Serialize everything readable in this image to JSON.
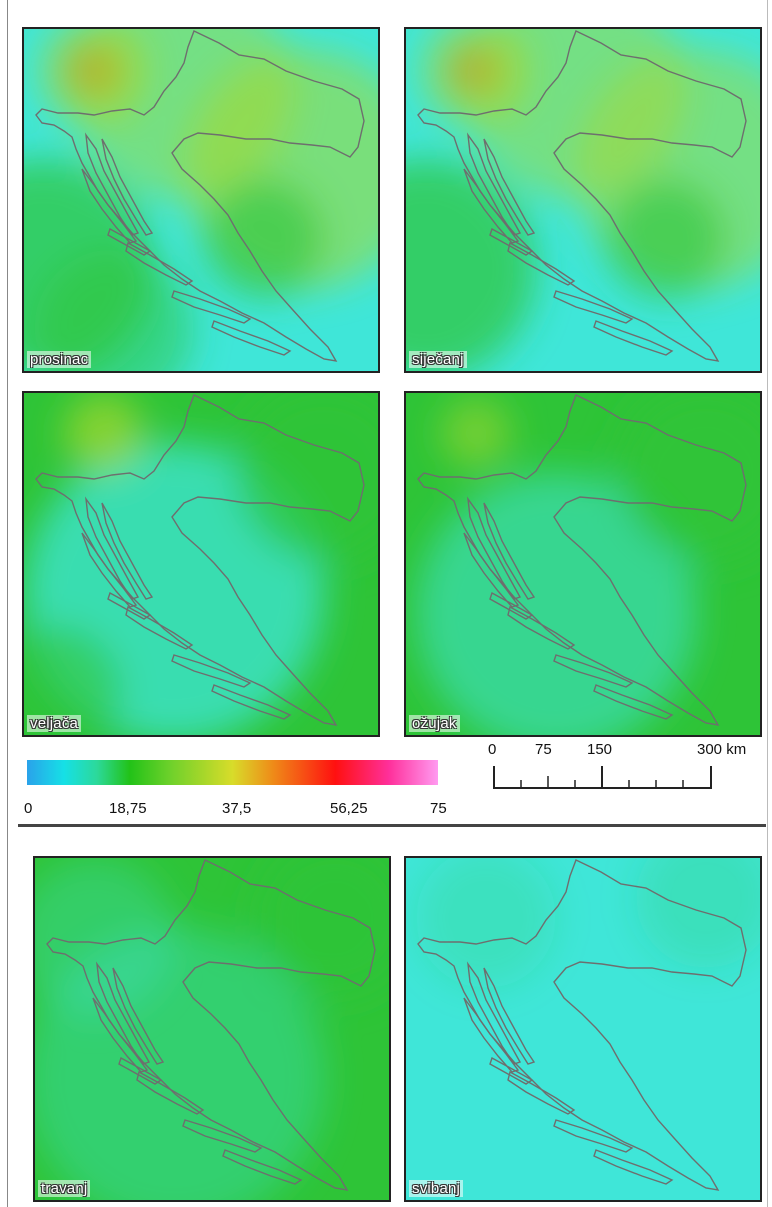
{
  "panels": [
    {
      "label": "prosinac"
    },
    {
      "label": "siječanj"
    },
    {
      "label": "veljača"
    },
    {
      "label": "ožujak"
    },
    {
      "label": "travanj"
    },
    {
      "label": "svibanj"
    }
  ],
  "legend": {
    "ticks": [
      "0",
      "18,75",
      "37,5",
      "56,25",
      "75"
    ],
    "colors": [
      "#2aa2ea",
      "#16e0e6",
      "#22c218",
      "#d8dc2a",
      "#ff1010",
      "#ff9af0"
    ]
  },
  "scalebar": {
    "labels": [
      "0",
      "75",
      "150",
      "300 km"
    ]
  },
  "map_colors": {
    "outline": "#6e6e6e",
    "cyan": "#3fe6d8",
    "green": "#2ec437",
    "yellowgreen": "#a8d930",
    "red": "#e8221a"
  }
}
